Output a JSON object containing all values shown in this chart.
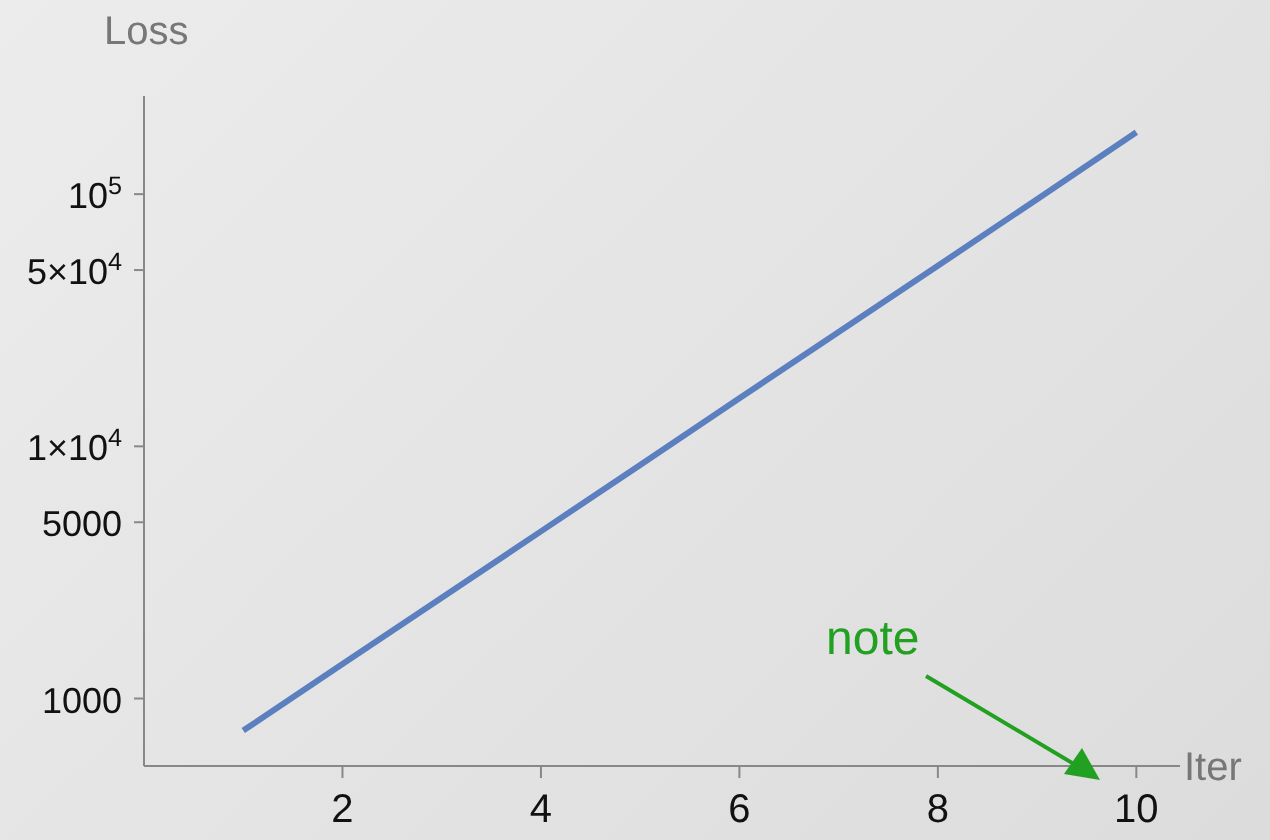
{
  "chart_data": {
    "type": "line",
    "xlabel": "Iter",
    "ylabel": "Loss",
    "x": [
      1,
      2,
      3,
      4,
      5,
      6,
      7,
      8,
      9,
      10
    ],
    "series": [
      {
        "color": "#5b7fbf",
        "values": [
          746,
          1370,
          2510,
          4600,
          8440,
          15500,
          28400,
          52000,
          95500,
          176000
        ]
      }
    ],
    "xlim": [
      0,
      10.44
    ],
    "xticks": [
      2,
      4,
      6,
      8,
      10
    ],
    "ylim": [
      540,
      245000
    ],
    "yticks": [
      {
        "value": 100000,
        "label": "10$^{5}$"
      },
      {
        "value": 50000,
        "label": "5×10$^{4}$"
      },
      {
        "value": 10000,
        "label": "1×10$^{4}$"
      },
      5000,
      1000
    ],
    "log": "y",
    "grid": false,
    "marker": "none",
    "line_style": "solid",
    "annotations": [
      "note"
    ]
  }
}
